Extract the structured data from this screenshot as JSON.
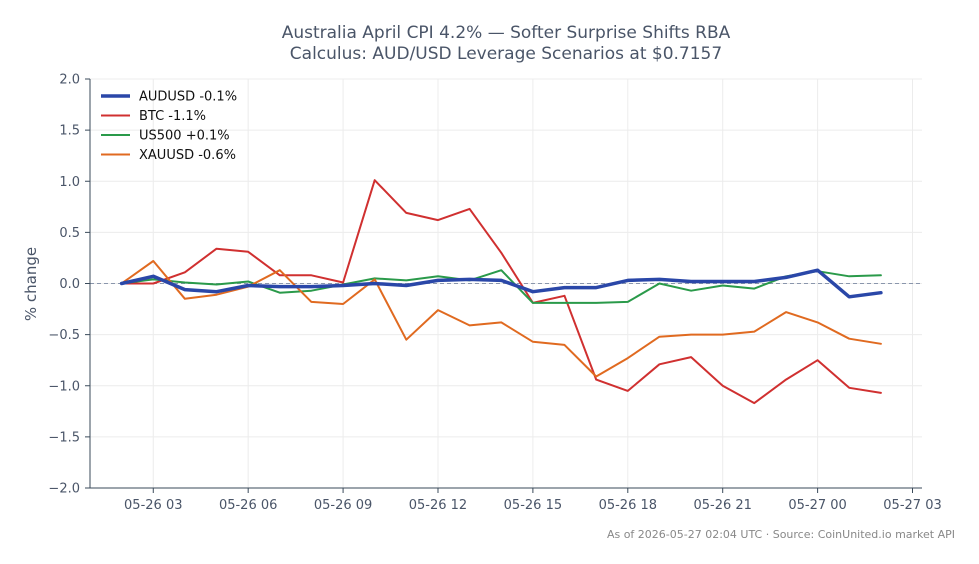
{
  "chart_data": {
    "type": "line",
    "title_lines": [
      "Australia April CPI 4.2% — Softer Surprise Shifts RBA",
      "Calculus: AUD/USD Leverage Scenarios at $0.7157"
    ],
    "xlabel": "",
    "ylabel": "% change",
    "ylim": [
      -2.0,
      2.0
    ],
    "y_ticks": [
      2.0,
      1.5,
      1.0,
      0.5,
      0.0,
      -0.5,
      -1.0,
      -1.5,
      -2.0
    ],
    "y_tick_labels": [
      "2.0",
      "1.5",
      "1.0",
      "0.5",
      "0.0",
      "−0.5",
      "−1.0",
      "−1.5",
      "−2.0"
    ],
    "x_hours": [
      2,
      3,
      4,
      5,
      6,
      7,
      8,
      9,
      10,
      11,
      12,
      13,
      14,
      15,
      16,
      17,
      18,
      19,
      20,
      21,
      22,
      23,
      24,
      25,
      26
    ],
    "x_tick_hours": [
      3,
      6,
      9,
      12,
      15,
      18,
      21,
      24,
      27
    ],
    "x_tick_labels": [
      "05-26 03",
      "05-26 06",
      "05-26 09",
      "05-26 12",
      "05-26 15",
      "05-26 18",
      "05-26 21",
      "05-27 00",
      "05-27 03"
    ],
    "grid": true,
    "zero_line": true,
    "legend_placement": "top-left",
    "series": [
      {
        "name": "AUDUSD -0.1%",
        "color": "#2a47a8",
        "width": 3.5,
        "values": [
          0.0,
          0.07,
          -0.06,
          -0.08,
          -0.02,
          -0.03,
          -0.03,
          -0.02,
          0.0,
          -0.02,
          0.03,
          0.04,
          0.03,
          -0.08,
          -0.04,
          -0.04,
          0.03,
          0.04,
          0.02,
          0.02,
          0.02,
          0.06,
          0.13,
          -0.13,
          -0.09
        ]
      },
      {
        "name": "BTC -1.1%",
        "color": "#d03030",
        "width": 2,
        "values": [
          0.0,
          0.0,
          0.11,
          0.34,
          0.31,
          0.08,
          0.08,
          0.01,
          1.01,
          0.69,
          0.62,
          0.73,
          0.3,
          -0.19,
          -0.12,
          -0.94,
          -1.05,
          -0.79,
          -0.72,
          -1.0,
          -1.17,
          -0.94,
          -0.75,
          -1.02,
          -1.07
        ]
      },
      {
        "name": "US500 +0.1%",
        "color": "#2a9a4a",
        "width": 2,
        "values": [
          0.0,
          0.04,
          0.01,
          -0.01,
          0.02,
          -0.09,
          -0.07,
          -0.01,
          0.05,
          0.03,
          0.07,
          0.03,
          0.13,
          -0.19,
          -0.19,
          -0.19,
          -0.18,
          0.0,
          -0.07,
          -0.02,
          -0.05,
          0.07,
          0.12,
          0.07,
          0.08
        ]
      },
      {
        "name": "XAUUSD -0.6%",
        "color": "#e06a20",
        "width": 2,
        "values": [
          0.0,
          0.22,
          -0.15,
          -0.11,
          -0.03,
          0.13,
          -0.18,
          -0.2,
          0.04,
          -0.55,
          -0.26,
          -0.41,
          -0.38,
          -0.57,
          -0.6,
          -0.91,
          -0.73,
          -0.52,
          -0.5,
          -0.5,
          -0.47,
          -0.28,
          -0.38,
          -0.54,
          -0.59
        ]
      }
    ]
  },
  "footer": "As of 2026-05-27 02:04 UTC · Source: CoinUnited.io market API"
}
